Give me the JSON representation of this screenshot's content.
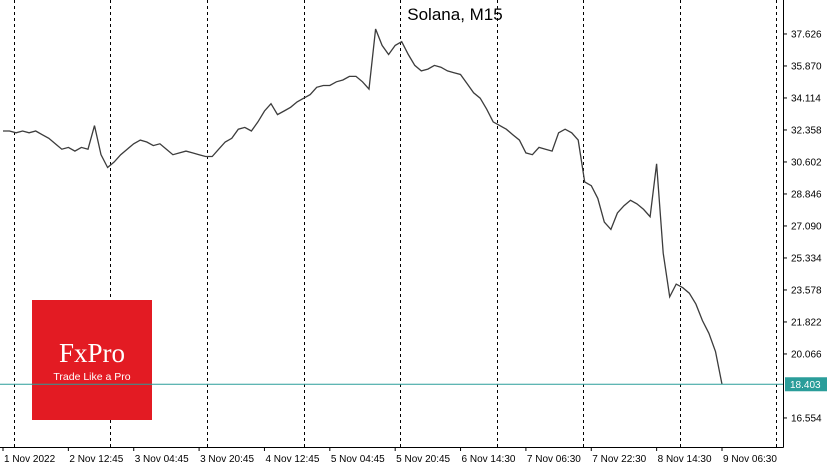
{
  "chart_data": {
    "type": "line",
    "title": "Solana, M15",
    "categories": [
      "1 Nov 2022",
      null,
      null,
      null,
      null,
      null,
      null,
      null,
      null,
      null,
      "2 Nov 12:45",
      null,
      null,
      null,
      null,
      null,
      null,
      null,
      null,
      null,
      "3 Nov 04:45",
      null,
      null,
      null,
      null,
      null,
      null,
      null,
      null,
      null,
      "3 Nov 20:45",
      null,
      null,
      null,
      null,
      null,
      null,
      null,
      null,
      null,
      "4 Nov 12:45",
      null,
      null,
      null,
      null,
      null,
      null,
      null,
      null,
      null,
      "5 Nov 04:45",
      null,
      null,
      null,
      null,
      null,
      null,
      null,
      null,
      null,
      "5 Nov 20:45",
      null,
      null,
      null,
      null,
      null,
      null,
      null,
      null,
      null,
      "6 Nov 14:30",
      null,
      null,
      null,
      null,
      null,
      null,
      null,
      null,
      null,
      "7 Nov 06:30",
      null,
      null,
      null,
      null,
      null,
      null,
      null,
      null,
      null,
      "7 Nov 22:30",
      null,
      null,
      null,
      null,
      null,
      null,
      null,
      null,
      null,
      "8 Nov 14:30",
      null,
      null,
      null,
      null,
      null,
      null,
      null,
      null,
      null,
      "9 Nov 06:30"
    ],
    "values": [
      32.3,
      32.3,
      32.2,
      32.3,
      32.2,
      32.3,
      32.1,
      31.9,
      31.6,
      31.3,
      31.4,
      31.2,
      31.4,
      31.3,
      32.6,
      31.0,
      30.3,
      30.6,
      31.0,
      31.3,
      31.6,
      31.8,
      31.7,
      31.5,
      31.6,
      31.3,
      31.0,
      31.1,
      31.2,
      31.1,
      31.0,
      30.9,
      30.9,
      31.3,
      31.7,
      31.9,
      32.4,
      32.5,
      32.3,
      32.8,
      33.4,
      33.8,
      33.2,
      33.4,
      33.6,
      33.9,
      34.1,
      34.3,
      34.7,
      34.8,
      34.8,
      35.0,
      35.1,
      35.3,
      35.3,
      35.0,
      34.6,
      37.9,
      37.0,
      36.5,
      37.0,
      37.2,
      36.5,
      35.9,
      35.6,
      35.7,
      35.9,
      35.8,
      35.6,
      35.5,
      35.4,
      34.9,
      34.4,
      34.1,
      33.5,
      32.8,
      32.6,
      32.4,
      32.1,
      31.8,
      31.1,
      31.0,
      31.4,
      31.3,
      31.2,
      32.2,
      32.4,
      32.2,
      31.8,
      29.5,
      29.3,
      28.6,
      27.3,
      26.9,
      27.8,
      28.2,
      28.5,
      28.3,
      28.0,
      27.6,
      30.5,
      25.6,
      23.2,
      23.9,
      23.7,
      23.4,
      22.8,
      21.9,
      21.2,
      20.2,
      18.4
    ],
    "color": "#3c3c3c",
    "ylim": [
      14.96,
      39.49
    ],
    "yticks": [
      16.554,
      20.066,
      21.822,
      23.578,
      25.334,
      {
        "value": 27.09,
        "label": "27.090"
      },
      28.846,
      30.602,
      32.358,
      34.114,
      {
        "value": 35.87,
        "label": "35.870"
      },
      37.626
    ],
    "price_line": 18.403,
    "price_line_color": "#2a9d9a"
  },
  "logo": {
    "brand": "FxPro",
    "tagline": "Trade Like a Pro"
  }
}
